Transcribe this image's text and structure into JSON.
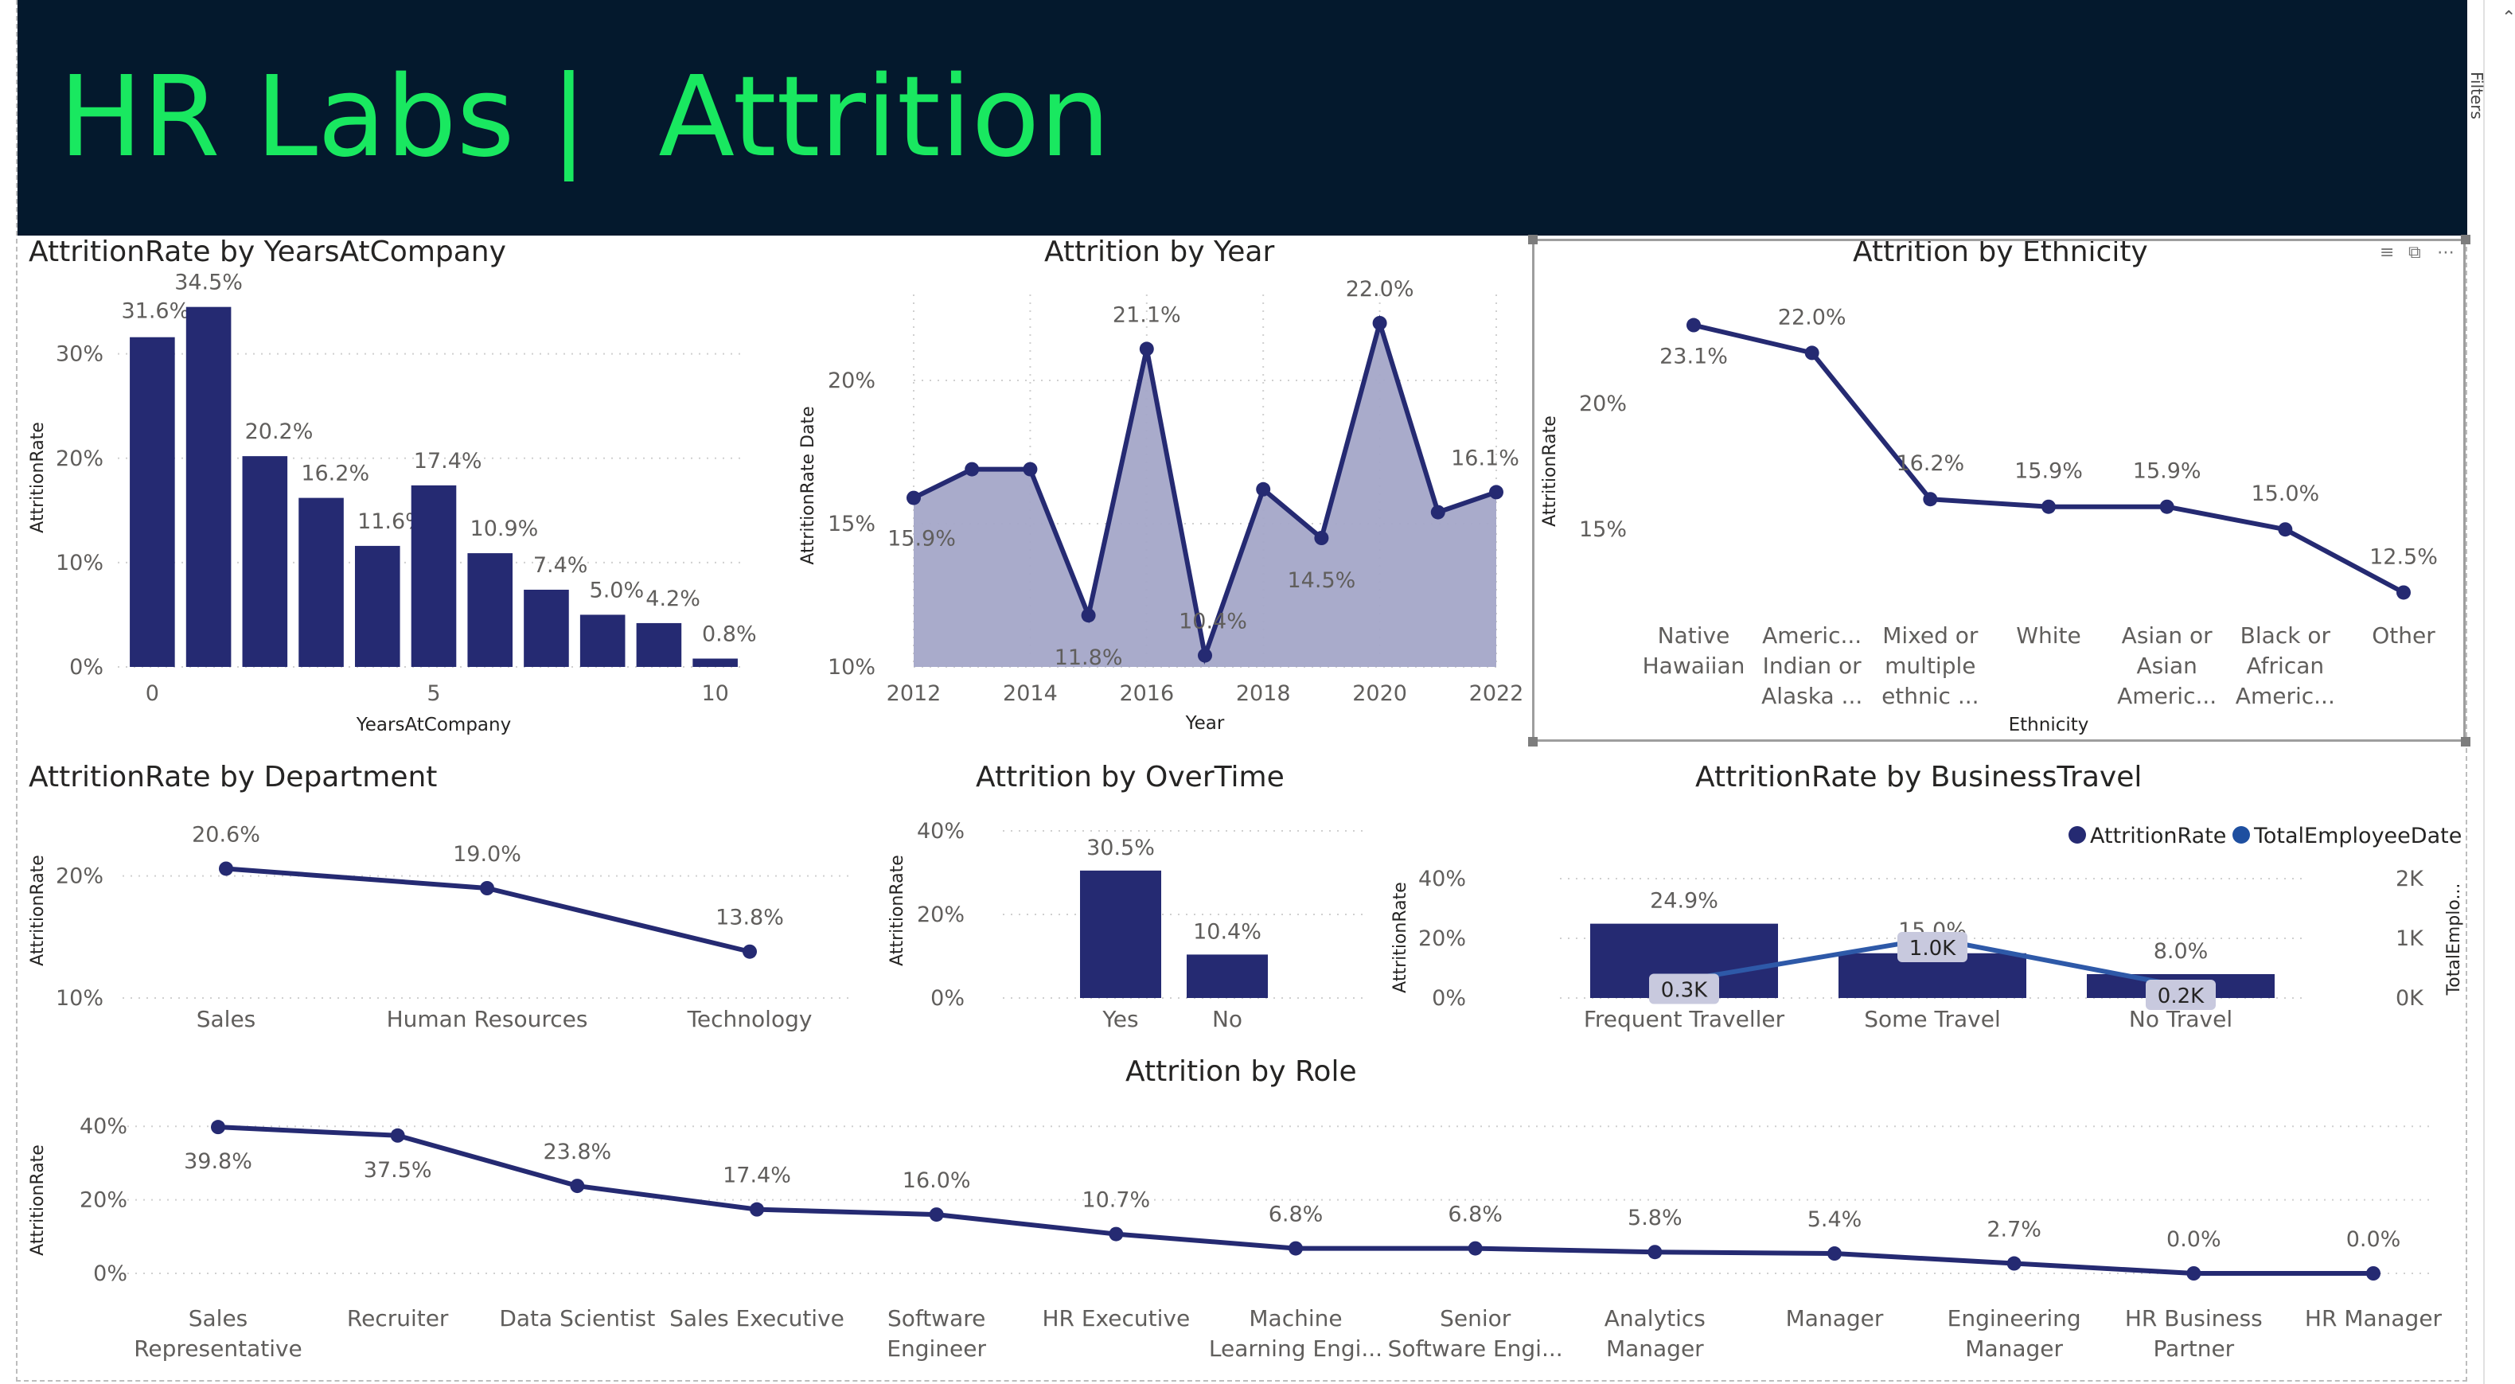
{
  "header": {
    "title": "HR Labs |  Attrition"
  },
  "filters_pane": {
    "label": "Filters",
    "icon": "chevron-up-icon"
  },
  "colors": {
    "banner": "#04192d",
    "title": "#19e860",
    "series": "#252a72",
    "series2": "#1e4fa0",
    "area": "#a4a6c8",
    "label_box": "#c8c9de"
  },
  "visual_header_icons": [
    "filter-icon",
    "focus-mode-icon",
    "more-options-icon"
  ],
  "charts": {
    "years": {
      "title": "AttritionRate by YearsAtCompany",
      "xlabel": "YearsAtCompany",
      "ylabel": "AttritionRate",
      "xticks": [
        "0",
        "5",
        "10"
      ],
      "yticks": [
        "0%",
        "10%",
        "20%",
        "30%"
      ]
    },
    "year": {
      "title": "Attrition by Year",
      "xlabel": "Year",
      "ylabel": "AttritionRate Date",
      "xticks": [
        "2012",
        "2014",
        "2016",
        "2018",
        "2020",
        "2022"
      ],
      "yticks": [
        "10%",
        "15%",
        "20%"
      ]
    },
    "ethnicity": {
      "title": "Attrition by Ethnicity",
      "xlabel": "Ethnicity",
      "ylabel": "AttritionRate",
      "yticks": [
        "15%",
        "20%"
      ]
    },
    "department": {
      "title": "AttritionRate by Department",
      "ylabel": "AttritionRate",
      "yticks": [
        "10%",
        "20%"
      ]
    },
    "overtime": {
      "title": "Attrition by OverTime",
      "ylabel": "AttritionRate",
      "yticks": [
        "0%",
        "20%",
        "40%"
      ]
    },
    "travel": {
      "title": "AttritionRate by BusinessTravel",
      "ylabel": "AttritionRate",
      "y2label": "TotalEmplo...",
      "yticks": [
        "0%",
        "20%",
        "40%"
      ],
      "y2ticks": [
        "0K",
        "1K",
        "2K"
      ],
      "legend": [
        "AttritionRate",
        "TotalEmployeeDate"
      ]
    },
    "role": {
      "title": "Attrition by Role",
      "ylabel": "AttritionRate",
      "yticks": [
        "0%",
        "20%",
        "40%"
      ]
    }
  },
  "chart_data": [
    {
      "type": "bar",
      "title": "AttritionRate by YearsAtCompany",
      "xlabel": "YearsAtCompany",
      "ylabel": "AttritionRate",
      "x": [
        0,
        1,
        2,
        3,
        4,
        5,
        6,
        7,
        8,
        9,
        10
      ],
      "values": [
        31.6,
        34.5,
        20.2,
        16.2,
        11.6,
        17.4,
        10.9,
        7.4,
        5.0,
        4.2,
        0.8
      ],
      "labels": [
        "31.6%",
        "34.5%",
        "20.2%",
        "16.2%",
        "11.6%",
        "17.4%",
        "10.9%",
        "7.4%",
        "5.0%",
        "4.2%",
        "0.8%"
      ],
      "ylim": [
        0,
        36
      ],
      "grid": true
    },
    {
      "type": "area",
      "title": "Attrition by Year",
      "xlabel": "Year",
      "ylabel": "AttritionRate Date",
      "x": [
        2012,
        2013,
        2014,
        2015,
        2016,
        2017,
        2018,
        2019,
        2020,
        2021,
        2022
      ],
      "values": [
        15.9,
        16.9,
        16.9,
        11.8,
        21.1,
        10.4,
        16.2,
        14.5,
        22.0,
        15.4,
        16.1
      ],
      "labels": [
        "15.9%",
        "",
        "",
        "11.8%",
        "21.1%",
        "10.4%",
        "",
        "14.5%",
        "22.0%",
        "",
        "16.1%"
      ],
      "ylim": [
        10,
        23
      ],
      "grid": true
    },
    {
      "type": "line",
      "title": "Attrition by Ethnicity",
      "xlabel": "Ethnicity",
      "ylabel": "AttritionRate",
      "categories": [
        [
          "Native",
          "Hawaiian"
        ],
        [
          "Americ...",
          "Indian or",
          "Alaska ..."
        ],
        [
          "Mixed or",
          "multiple",
          "ethnic ..."
        ],
        [
          "White"
        ],
        [
          "Asian or",
          "Asian",
          "Americ..."
        ],
        [
          "Black or",
          "African",
          "Americ..."
        ],
        [
          "Other"
        ]
      ],
      "values": [
        23.1,
        22.0,
        16.2,
        15.9,
        15.9,
        15.0,
        12.5
      ],
      "labels": [
        "23.1%",
        "22.0%",
        "16.2%",
        "15.9%",
        "15.9%",
        "15.0%",
        "12.5%"
      ],
      "ylim": [
        11,
        24
      ]
    },
    {
      "type": "line",
      "title": "AttritionRate by Department",
      "ylabel": "AttritionRate",
      "categories": [
        "Sales",
        "Human Resources",
        "Technology"
      ],
      "values": [
        20.6,
        19.0,
        13.8
      ],
      "labels": [
        "20.6%",
        "19.0%",
        "13.8%"
      ],
      "ylim": [
        10,
        22
      ]
    },
    {
      "type": "bar",
      "title": "Attrition by OverTime",
      "ylabel": "AttritionRate",
      "categories": [
        "Yes",
        "No"
      ],
      "values": [
        30.5,
        10.4
      ],
      "labels": [
        "30.5%",
        "10.4%"
      ],
      "ylim": [
        0,
        40
      ]
    },
    {
      "type": "bar",
      "title": "AttritionRate by BusinessTravel",
      "ylabel": "AttritionRate",
      "categories": [
        "Frequent Traveller",
        "Some Travel",
        "No Travel"
      ],
      "series": [
        {
          "name": "AttritionRate",
          "type": "bar",
          "values": [
            24.9,
            15.0,
            8.0
          ],
          "labels": [
            "24.9%",
            "15.0%",
            "8.0%"
          ]
        },
        {
          "name": "TotalEmployeeDate",
          "type": "line",
          "values": [
            300,
            1000,
            200
          ],
          "labels": [
            "0.3K",
            "1.0K",
            "0.2K"
          ]
        }
      ],
      "ylim": [
        0,
        40
      ],
      "y2lim": [
        0,
        2000
      ],
      "legend": "top-right"
    },
    {
      "type": "line",
      "title": "Attrition by Role",
      "ylabel": "AttritionRate",
      "categories": [
        [
          "Sales",
          "Representative"
        ],
        [
          "Recruiter"
        ],
        [
          "Data Scientist"
        ],
        [
          "Sales Executive"
        ],
        [
          "Software",
          "Engineer"
        ],
        [
          "HR Executive"
        ],
        [
          "Machine",
          "Learning Engi..."
        ],
        [
          "Senior",
          "Software Engi..."
        ],
        [
          "Analytics",
          "Manager"
        ],
        [
          "Manager"
        ],
        [
          "Engineering",
          "Manager"
        ],
        [
          "HR Business",
          "Partner"
        ],
        [
          "HR Manager"
        ]
      ],
      "values": [
        39.8,
        37.5,
        23.8,
        17.4,
        16.0,
        10.7,
        6.8,
        6.8,
        5.8,
        5.4,
        2.7,
        0.0,
        0.0
      ],
      "labels": [
        "39.8%",
        "37.5%",
        "23.8%",
        "17.4%",
        "16.0%",
        "10.7%",
        "6.8%",
        "6.8%",
        "5.8%",
        "5.4%",
        "2.7%",
        "0.0%",
        "0.0%"
      ],
      "ylim": [
        0,
        42
      ]
    }
  ]
}
